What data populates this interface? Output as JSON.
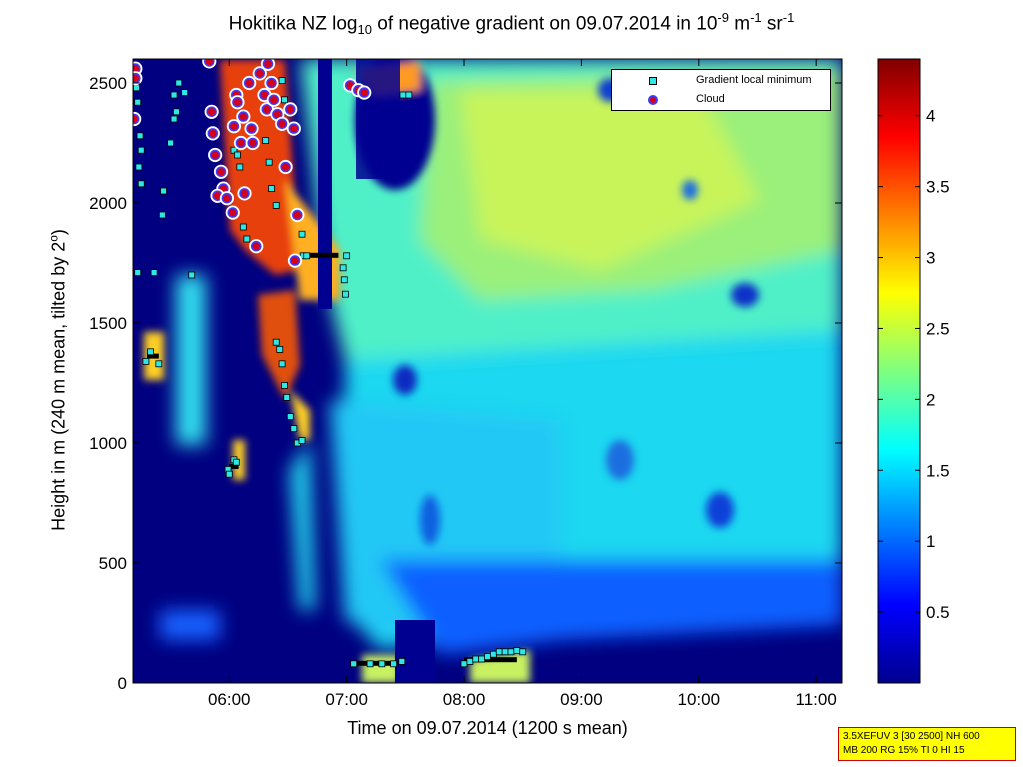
{
  "chart_data": {
    "type": "heatmap",
    "title_parts": {
      "prefix": "Hokitika NZ log",
      "sub": "10",
      "mid": " of negative gradient on 09.07.2014 in 10",
      "sup1": "-9",
      "mid2": " m",
      "sup2": "-1",
      "mid3": " sr",
      "sup3": "-1"
    },
    "xlabel": "Time on 09.07.2014 (1200 s mean)",
    "ylabel_parts": {
      "text": "Height in m (240 m mean, tilted by 2",
      "sup": "o",
      "end": ")"
    },
    "x_ticks": [
      "06:00",
      "07:00",
      "08:00",
      "09:00",
      "10:00",
      "11:00"
    ],
    "x_range_hours": [
      5.18,
      11.22
    ],
    "y_ticks": [
      0,
      500,
      1000,
      1500,
      2000,
      2500
    ],
    "y_range": [
      0,
      2600
    ],
    "colorbar": {
      "colormap": "jet",
      "ticks": [
        0.5,
        1,
        1.5,
        2,
        2.5,
        3,
        3.5,
        4
      ],
      "tick_labels": [
        "0.5",
        "1",
        "1.5",
        "2",
        "2.5",
        "3",
        "3.5",
        "4"
      ],
      "range": [
        0,
        4.4
      ]
    },
    "legend": [
      {
        "label": "Gradient local minimum",
        "symbol": "cyan-square"
      },
      {
        "label": "Cloud",
        "symbol": "red-circle-blue-edge"
      }
    ],
    "legend_position": "top-right",
    "grid": false,
    "clouds": [
      [
        5.2,
        2560
      ],
      [
        5.2,
        2520
      ],
      [
        5.19,
        2350
      ],
      [
        5.83,
        2590
      ],
      [
        5.85,
        2380
      ],
      [
        5.86,
        2290
      ],
      [
        5.88,
        2200
      ],
      [
        5.93,
        2130
      ],
      [
        5.95,
        2060
      ],
      [
        5.9,
        2030
      ],
      [
        5.98,
        2020
      ],
      [
        6.03,
        1960
      ],
      [
        6.04,
        2320
      ],
      [
        6.06,
        2450
      ],
      [
        6.07,
        2420
      ],
      [
        6.1,
        2250
      ],
      [
        6.12,
        2360
      ],
      [
        6.13,
        2040
      ],
      [
        6.17,
        2500
      ],
      [
        6.19,
        2310
      ],
      [
        6.2,
        2250
      ],
      [
        6.23,
        1820
      ],
      [
        6.26,
        2540
      ],
      [
        6.3,
        2450
      ],
      [
        6.32,
        2390
      ],
      [
        6.33,
        2580
      ],
      [
        6.36,
        2500
      ],
      [
        6.38,
        2430
      ],
      [
        6.41,
        2370
      ],
      [
        6.45,
        2330
      ],
      [
        6.48,
        2150
      ],
      [
        6.52,
        2390
      ],
      [
        6.55,
        2310
      ],
      [
        6.58,
        1950
      ],
      [
        6.56,
        1760
      ],
      [
        7.03,
        2490
      ],
      [
        7.1,
        2470
      ],
      [
        7.15,
        2460
      ]
    ],
    "gradient_minima": [
      [
        5.21,
        2480
      ],
      [
        5.22,
        2420
      ],
      [
        5.24,
        2280
      ],
      [
        5.25,
        2220
      ],
      [
        5.23,
        2150
      ],
      [
        5.25,
        2080
      ],
      [
        5.22,
        1710
      ],
      [
        5.36,
        1710
      ],
      [
        5.43,
        1950
      ],
      [
        5.44,
        2050
      ],
      [
        5.5,
        2250
      ],
      [
        5.53,
        2450
      ],
      [
        5.55,
        2380
      ],
      [
        5.53,
        2350
      ],
      [
        5.57,
        2500
      ],
      [
        5.62,
        2460
      ],
      [
        5.68,
        1700
      ],
      [
        5.29,
        1340
      ],
      [
        5.33,
        1380
      ],
      [
        5.4,
        1330
      ],
      [
        6.04,
        930
      ],
      [
        6.06,
        920
      ],
      [
        5.99,
        890
      ],
      [
        6.0,
        870
      ],
      [
        6.4,
        1420
      ],
      [
        6.43,
        1390
      ],
      [
        6.45,
        1330
      ],
      [
        6.47,
        1240
      ],
      [
        6.49,
        1190
      ],
      [
        6.52,
        1110
      ],
      [
        6.55,
        1060
      ],
      [
        6.58,
        1000
      ],
      [
        6.62,
        1010
      ],
      [
        6.63,
        1780
      ],
      [
        6.66,
        1780
      ],
      [
        6.62,
        1870
      ],
      [
        6.97,
        1730
      ],
      [
        6.98,
        1680
      ],
      [
        6.99,
        1620
      ],
      [
        7.0,
        1780
      ],
      [
        6.31,
        2260
      ],
      [
        6.34,
        2170
      ],
      [
        6.36,
        2060
      ],
      [
        6.4,
        1990
      ],
      [
        6.45,
        2510
      ],
      [
        6.47,
        2430
      ],
      [
        6.5,
        2380
      ],
      [
        7.06,
        80
      ],
      [
        7.2,
        80
      ],
      [
        7.3,
        80
      ],
      [
        7.4,
        80
      ],
      [
        7.47,
        90
      ],
      [
        8.0,
        80
      ],
      [
        8.05,
        90
      ],
      [
        8.1,
        100
      ],
      [
        8.15,
        100
      ],
      [
        8.2,
        110
      ],
      [
        8.25,
        120
      ],
      [
        8.3,
        130
      ],
      [
        8.35,
        130
      ],
      [
        8.4,
        130
      ],
      [
        8.45,
        135
      ],
      [
        8.5,
        130
      ],
      [
        7.48,
        2450
      ],
      [
        7.53,
        2450
      ],
      [
        6.04,
        2220
      ],
      [
        6.07,
        2200
      ],
      [
        6.09,
        2150
      ],
      [
        6.12,
        1900
      ],
      [
        6.15,
        1850
      ]
    ],
    "black_runs": [
      {
        "x": [
          6.65,
          6.93
        ],
        "y": 1780
      },
      {
        "x": [
          7.05,
          7.42
        ],
        "y": 80
      },
      {
        "x": [
          8.0,
          8.45
        ],
        "y": 95
      },
      {
        "x": [
          7.45,
          7.55
        ],
        "y": 2450
      },
      {
        "x": [
          5.3,
          5.4
        ],
        "y": 1360
      },
      {
        "x": [
          6.0,
          6.08
        ],
        "y": 900
      }
    ]
  },
  "info_box": {
    "line1": "3.5XEFUV 3 [30 2500] NH 600",
    "line2": "MB 200 RG 15% TI 0 HI 15"
  },
  "colors": {
    "background": "#000080",
    "cloud_fill": "#d4001a",
    "cloud_edge": "#3b3bff",
    "minimum_fill": "#2ee8e8",
    "infobox_bg": "#ffff00",
    "infobox_border": "#cc0000"
  }
}
